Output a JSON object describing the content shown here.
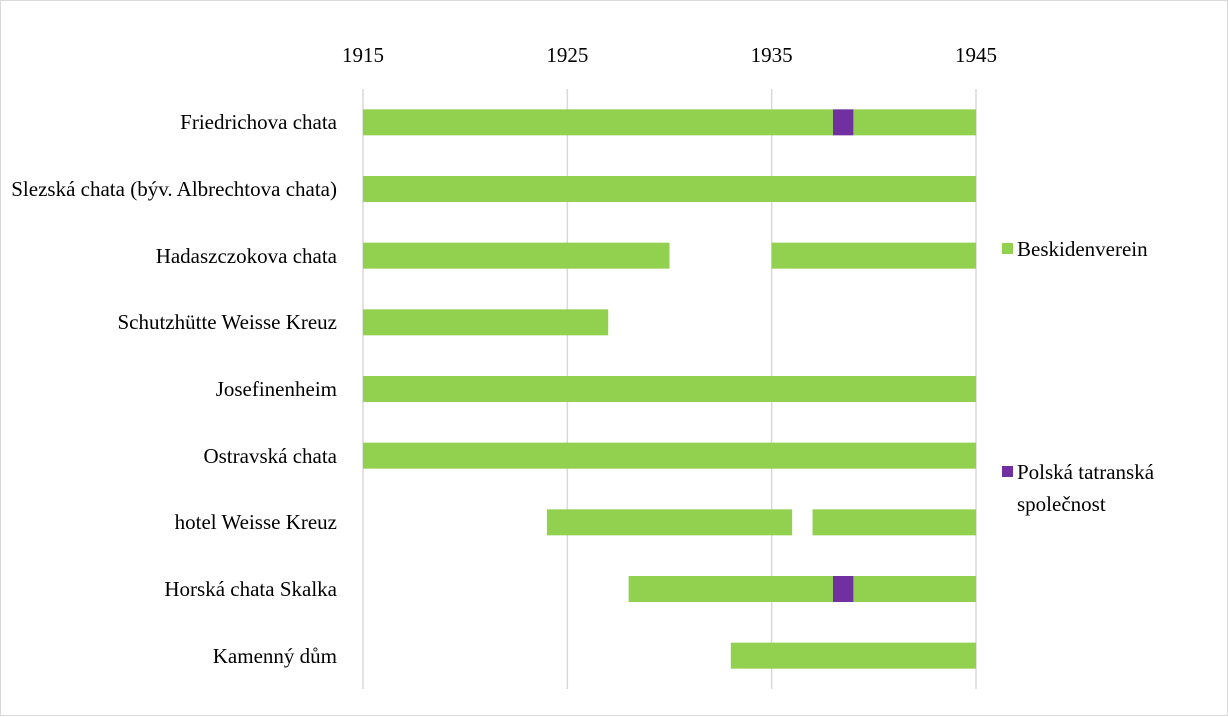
{
  "chart_data": {
    "type": "gantt",
    "categories": [
      "Friedrichova chata",
      "Slezská chata (býv. Albrechtova chata)",
      "Hadaszczokova chata",
      "Schutzhütte Weisse Kreuz",
      "Josefinenheim",
      "Ostravská chata",
      "hotel Weisse Kreuz",
      "Horská chata Skalka",
      "Kamenný dům"
    ],
    "series": [
      {
        "name": "Beskidenverein",
        "color": "#92d050",
        "values": [
          [
            [
              1915,
              1938
            ],
            [
              1939,
              1945
            ]
          ],
          [
            [
              1915,
              1945
            ]
          ],
          [
            [
              1915,
              1930
            ],
            [
              1935,
              1945
            ]
          ],
          [
            [
              1915,
              1927
            ]
          ],
          [
            [
              1915,
              1945
            ]
          ],
          [
            [
              1915,
              1945
            ]
          ],
          [
            [
              1924,
              1936
            ],
            [
              1937,
              1945
            ]
          ],
          [
            [
              1928,
              1938
            ],
            [
              1939,
              1945
            ]
          ],
          [
            [
              1933,
              1945
            ]
          ]
        ]
      },
      {
        "name": "Polská tatranská společnost",
        "color": "#7030a0",
        "values": [
          [
            [
              1938,
              1939
            ]
          ],
          [],
          [],
          [],
          [],
          [],
          [],
          [
            [
              1938,
              1939
            ]
          ],
          []
        ]
      }
    ],
    "xlim": [
      1915,
      1945
    ],
    "xticks": [
      1915,
      1925,
      1935,
      1945
    ],
    "grid": true,
    "legend": "right"
  }
}
